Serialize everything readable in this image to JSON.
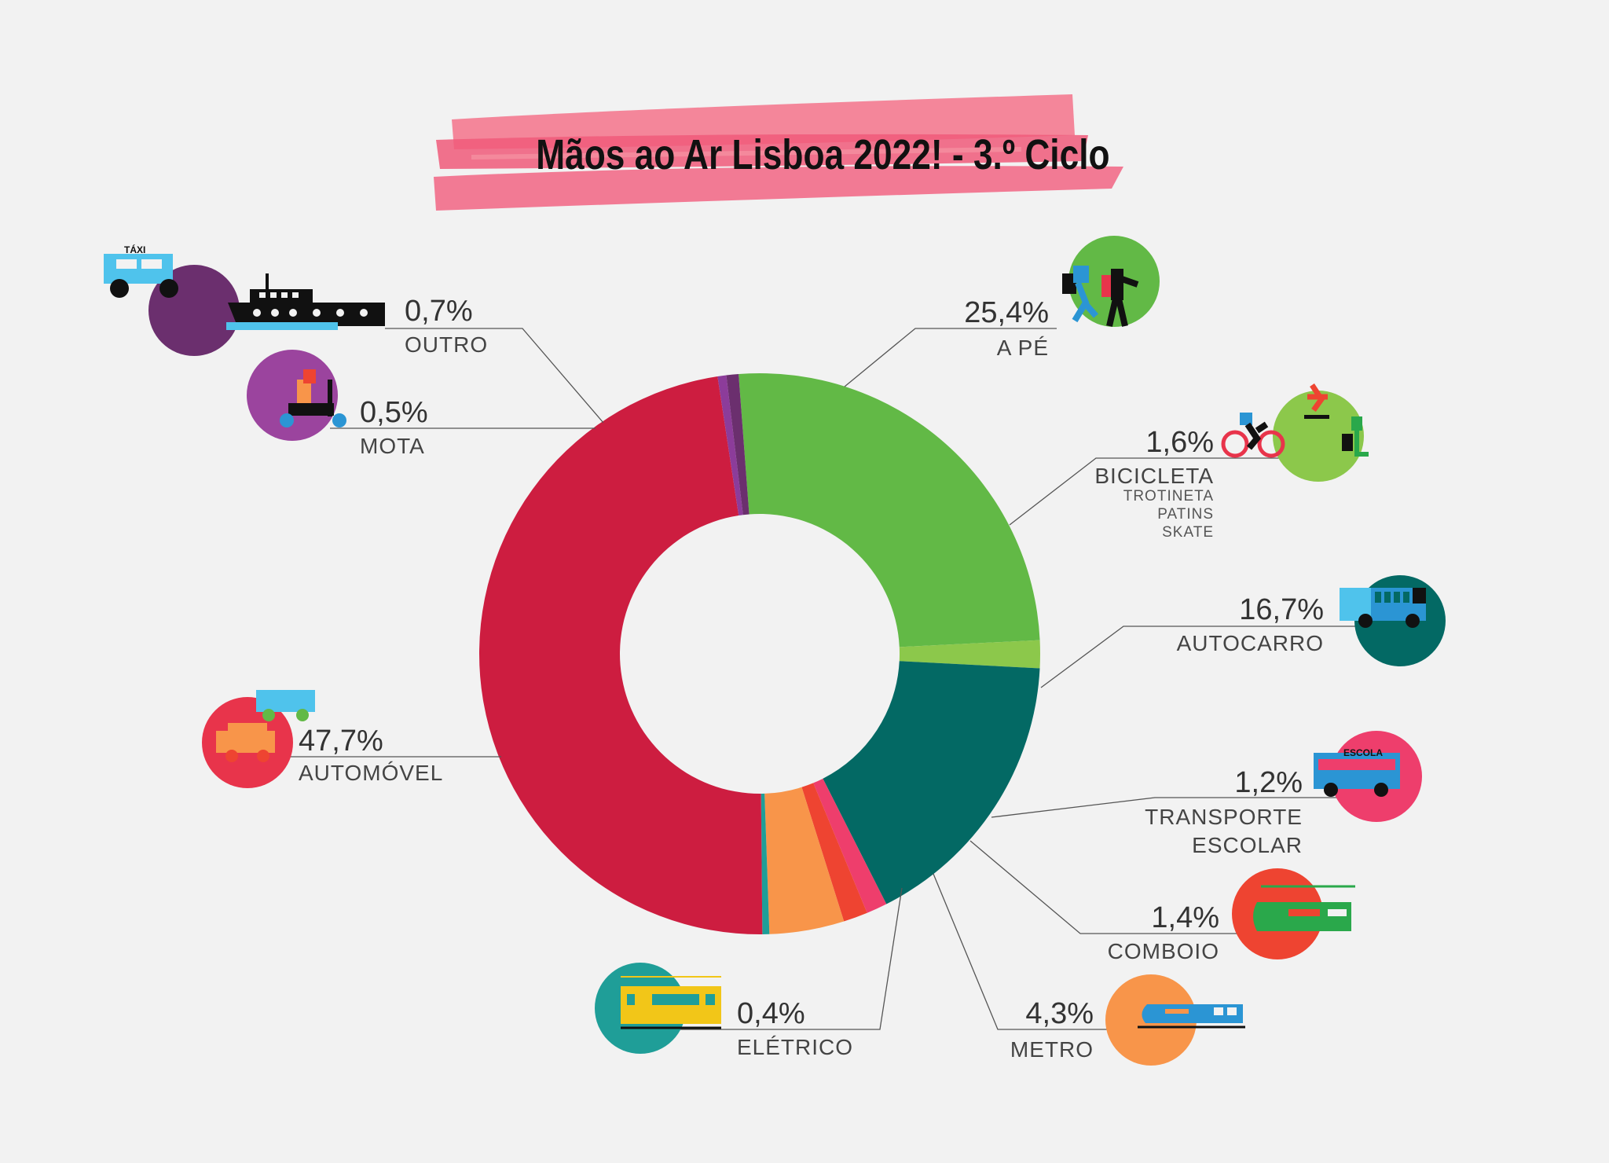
{
  "title": "Mãos ao Ar Lisboa 2022! - 3.º Ciclo",
  "icon_texts": {
    "taxi": "TÁXI",
    "school_bus": "ESCOLA"
  },
  "chart_data": {
    "type": "pie",
    "donut": true,
    "title": "Mãos ao Ar Lisboa 2022! - 3.º Ciclo",
    "unit": "%",
    "slices": [
      {
        "label": "A PÉ",
        "value": 25.4,
        "value_label": "25,4%",
        "color": "#62b946"
      },
      {
        "label": "BICICLETA",
        "sublabels": [
          "TROTINETA",
          "PATINS",
          "SKATE"
        ],
        "value": 1.6,
        "value_label": "1,6%",
        "color": "#8cc84b"
      },
      {
        "label": "AUTOCARRO",
        "value": 16.7,
        "value_label": "16,7%",
        "color": "#036964"
      },
      {
        "label": "TRANSPORTE ESCOLAR",
        "label_lines": [
          "TRANSPORTE",
          "ESCOLAR"
        ],
        "value": 1.2,
        "value_label": "1,2%",
        "color": "#ee3e6c"
      },
      {
        "label": "COMBOIO",
        "value": 1.4,
        "value_label": "1,4%",
        "color": "#ee4431"
      },
      {
        "label": "METRO",
        "value": 4.3,
        "value_label": "4,3%",
        "color": "#f8954a"
      },
      {
        "label": "ELÉTRICO",
        "value": 0.4,
        "value_label": "0,4%",
        "color": "#1f9e98"
      },
      {
        "label": "AUTOMÓVEL",
        "value": 47.7,
        "value_label": "47,7%",
        "color": "#cd1d40"
      },
      {
        "label": "MOTA",
        "value": 0.5,
        "value_label": "0,5%",
        "color": "#8c3c9a"
      },
      {
        "label": "OUTRO",
        "value": 0.7,
        "value_label": "0,7%",
        "color": "#6b2f6e"
      }
    ]
  }
}
